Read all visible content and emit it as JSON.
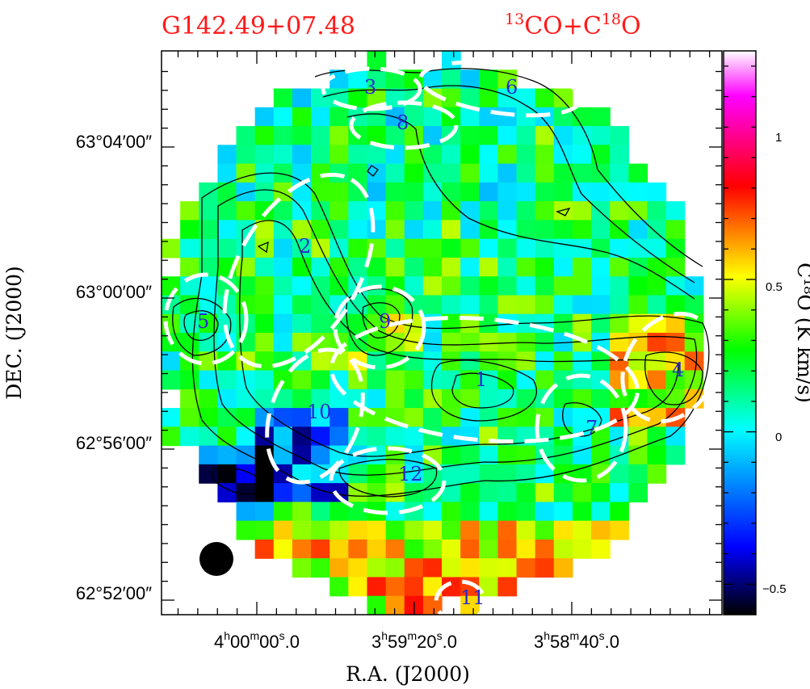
{
  "chart_data": {
    "type": "heatmap",
    "title_left": "G142.49+07.48",
    "title_right": {
      "mass": "13",
      "base": "CO+C",
      "mass2": "18",
      "tail": "O"
    },
    "xlabel": "R.A.  (J2000)",
    "ylabel": "DEC.  (J2000)",
    "x_ticks": [
      {
        "h": "4",
        "m": "00",
        "s": "00",
        "f": "0"
      },
      {
        "h": "3",
        "m": "59",
        "s": "20",
        "f": "0"
      },
      {
        "h": "3",
        "m": "58",
        "s": "40",
        "f": "0"
      }
    ],
    "y_ticks": [
      "63°04′00″",
      "63°00′00″",
      "62°56′00″",
      "62°52′00″"
    ],
    "y_tick_values_arcmin": [
      4,
      0,
      -4,
      -8
    ],
    "colorbar": {
      "label": "C¹⁸O (K km/s)",
      "ticks": [
        "1",
        "0.5",
        "0",
        "−0.5"
      ],
      "tick_values": [
        1,
        0.5,
        0,
        -0.5
      ],
      "range": [
        -0.6,
        1.25
      ],
      "colors": [
        "#000000",
        "#0000ff",
        "#00ffff",
        "#00ff00",
        "#ffff00",
        "#ff0000",
        "#ff00ff",
        "#ffffff"
      ]
    },
    "map_grid": {
      "cols": 30,
      "rows": 30
    },
    "contours": "black",
    "clumps": [
      {
        "id": "1"
      },
      {
        "id": "2"
      },
      {
        "id": "3"
      },
      {
        "id": "4"
      },
      {
        "id": "5"
      },
      {
        "id": "6"
      },
      {
        "id": "7"
      },
      {
        "id": "8"
      },
      {
        "id": "9"
      },
      {
        "id": "10"
      },
      {
        "id": "11"
      },
      {
        "id": "12"
      }
    ],
    "beam": "black filled circle (lower left)"
  }
}
